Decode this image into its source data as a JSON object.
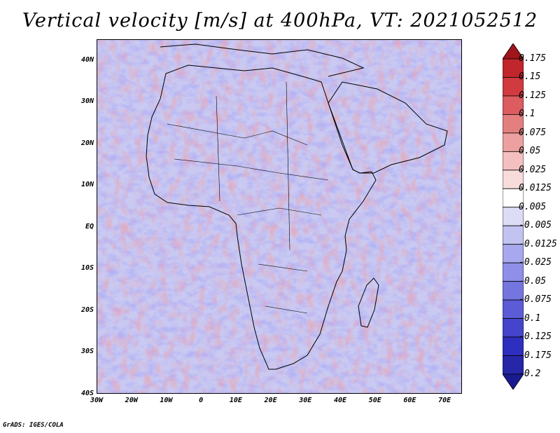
{
  "title": "Vertical velocity [m/s] at 400hPa, VT: 2021052512",
  "credit": "GrADS: IGES/COLA",
  "map": {
    "lon_range": [
      -30,
      75
    ],
    "lat_range": [
      -40,
      45
    ],
    "lat_ticks": [
      {
        "value": 40,
        "label": "40N"
      },
      {
        "value": 30,
        "label": "30N"
      },
      {
        "value": 20,
        "label": "20N"
      },
      {
        "value": 10,
        "label": "10N"
      },
      {
        "value": 0,
        "label": "EQ"
      },
      {
        "value": -10,
        "label": "10S"
      },
      {
        "value": -20,
        "label": "20S"
      },
      {
        "value": -30,
        "label": "30S"
      },
      {
        "value": -40,
        "label": "40S"
      }
    ],
    "lon_ticks": [
      {
        "value": -30,
        "label": "30W"
      },
      {
        "value": -20,
        "label": "20W"
      },
      {
        "value": -10,
        "label": "10W"
      },
      {
        "value": 0,
        "label": "0"
      },
      {
        "value": 10,
        "label": "10E"
      },
      {
        "value": 20,
        "label": "20E"
      },
      {
        "value": 30,
        "label": "30E"
      },
      {
        "value": 40,
        "label": "40E"
      },
      {
        "value": 50,
        "label": "50E"
      },
      {
        "value": 60,
        "label": "60E"
      },
      {
        "value": 70,
        "label": "70E"
      }
    ]
  },
  "colorbar": {
    "levels": [
      "0.175",
      "0.15",
      "0.125",
      "0.1",
      "0.075",
      "0.05",
      "0.025",
      "0.0125",
      "0.005",
      "-0.005",
      "-0.0125",
      "-0.025",
      "-0.05",
      "-0.075",
      "-0.1",
      "-0.125",
      "-0.175",
      "-0.2"
    ],
    "colors": [
      "#a0151a",
      "#c0262b",
      "#d13a3f",
      "#dc5c60",
      "#e47f80",
      "#eca0a0",
      "#f3c0bf",
      "#f8dcdb",
      "#ffffff",
      "#dcdcf6",
      "#c3c3f2",
      "#a8a8ee",
      "#8f8fea",
      "#7575e0",
      "#5c5cd6",
      "#4444cc",
      "#2e2ebf",
      "#2626a8",
      "#1a1a90"
    ]
  }
}
